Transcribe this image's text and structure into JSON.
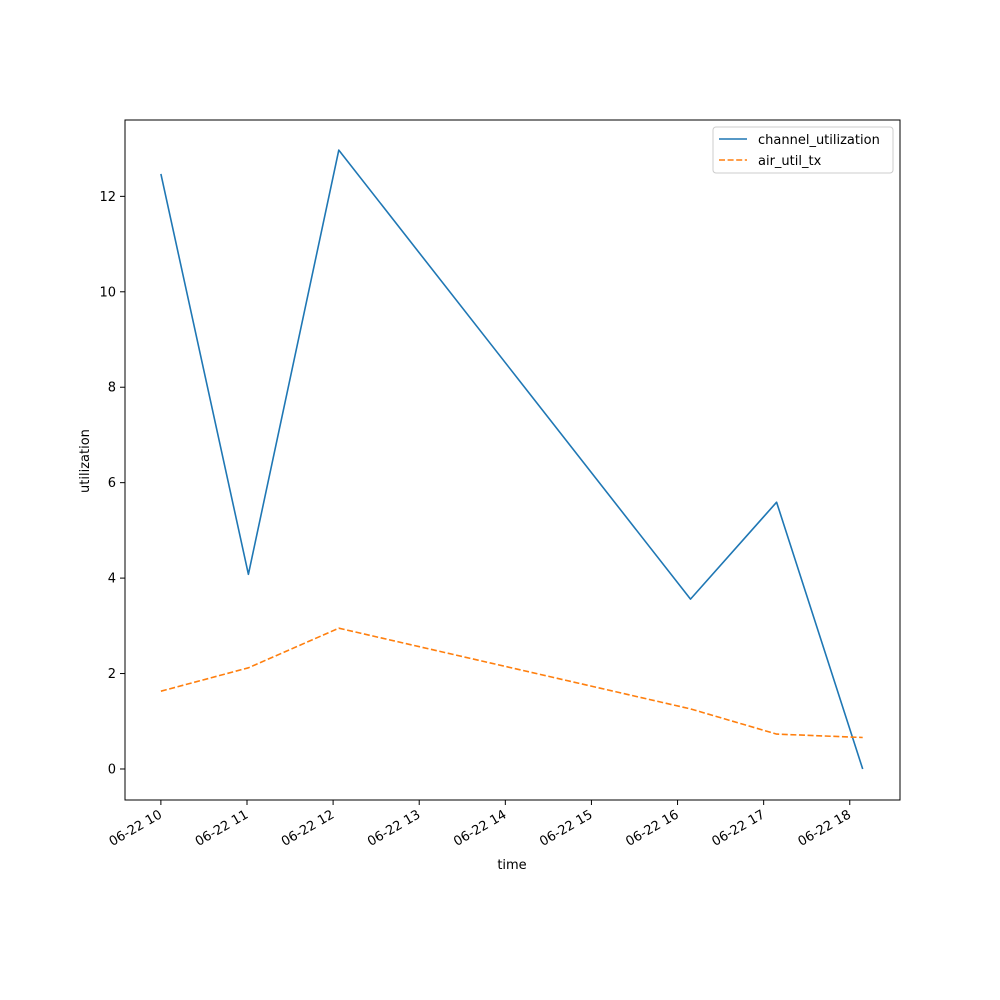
{
  "chart_data": {
    "type": "line",
    "title": "",
    "xlabel": "time",
    "ylabel": "utilization",
    "x_ticks": [
      "06-22 10",
      "06-22 11",
      "06-22 12",
      "06-22 13",
      "06-22 14",
      "06-22 15",
      "06-22 16",
      "06-22 17",
      "06-22 18"
    ],
    "y_ticks": [
      0,
      2,
      4,
      6,
      8,
      10,
      12
    ],
    "xlim": [
      "2023-06-22 09:35",
      "2023-06-22 18:35"
    ],
    "ylim": [
      -0.65,
      13.6
    ],
    "x": [
      "2023-06-22 10:00",
      "2023-06-22 11:01",
      "2023-06-22 12:04",
      "2023-06-22 16:09",
      "2023-06-22 17:09",
      "2023-06-22 18:09"
    ],
    "series": [
      {
        "name": "channel_utilization",
        "values": [
          12.47,
          4.08,
          12.97,
          3.56,
          5.59,
          0.0
        ],
        "color": "#1f77b4",
        "style": "solid"
      },
      {
        "name": "air_util_tx",
        "values": [
          1.63,
          2.12,
          2.95,
          1.26,
          0.73,
          0.66
        ],
        "color": "#ff7f0e",
        "style": "dashed"
      }
    ],
    "grid": false,
    "legend_position": "top-right"
  }
}
